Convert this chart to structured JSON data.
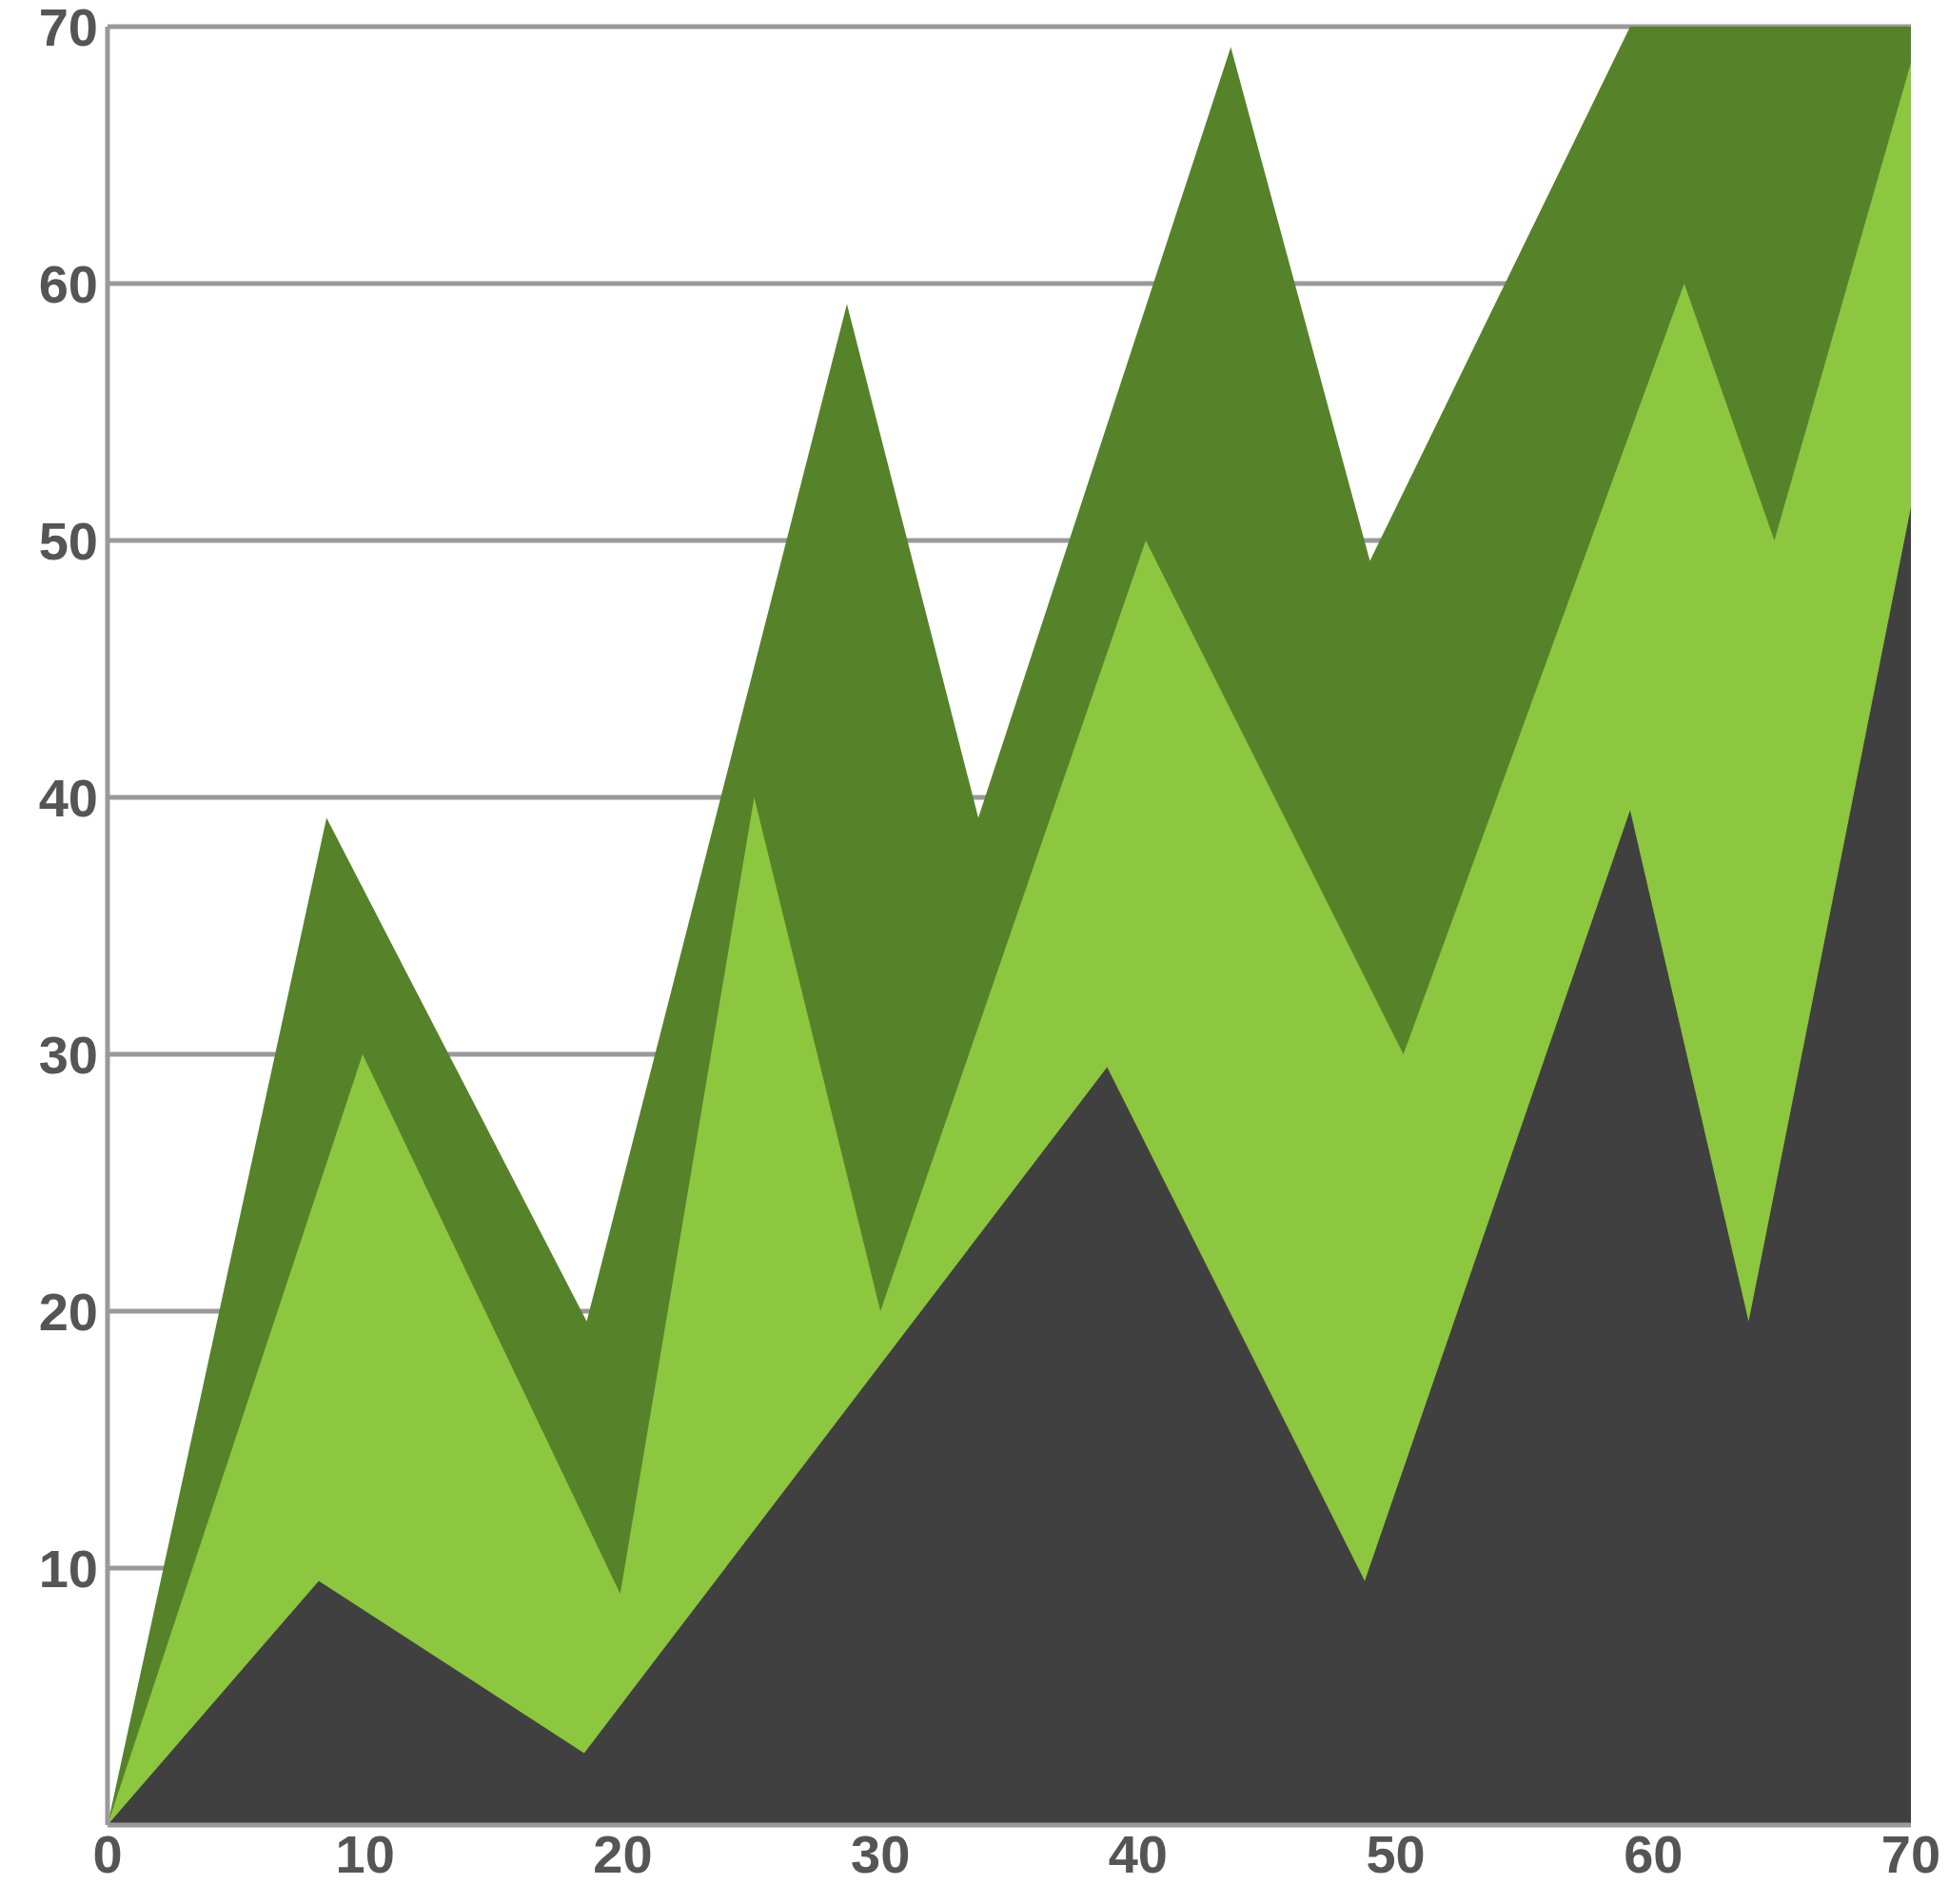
{
  "chart_data": {
    "type": "area",
    "xlim": [
      0,
      70
    ],
    "xticks": [
      0,
      10,
      20,
      30,
      40,
      50,
      60,
      70
    ],
    "ylim": [
      0,
      70
    ],
    "yticks": [
      10,
      20,
      30,
      40,
      50,
      60,
      70
    ],
    "grid": "y",
    "legend": false,
    "series": [
      {
        "color": "#56822a",
        "x": [
          0,
          8.5,
          18.6,
          28.7,
          33.8,
          43.6,
          49,
          59.1,
          70
        ],
        "values": [
          0,
          39.2,
          19.6,
          59.2,
          39.2,
          69.2,
          49.2,
          70,
          70
        ]
      },
      {
        "color": "#8dc63f",
        "x": [
          0,
          9.9,
          19.9,
          25.1,
          30,
          40.3,
          50.3,
          61.2,
          64.7,
          70
        ],
        "values": [
          0,
          30,
          9,
          40,
          20,
          50,
          30,
          60,
          50,
          68.6
        ]
      },
      {
        "color": "#404040",
        "x": [
          0,
          8.2,
          18.5,
          38.8,
          48.8,
          59.1,
          63.7,
          70
        ],
        "values": [
          0,
          9.5,
          2.8,
          29.5,
          9.5,
          39.5,
          19.6,
          51.3
        ]
      }
    ]
  }
}
